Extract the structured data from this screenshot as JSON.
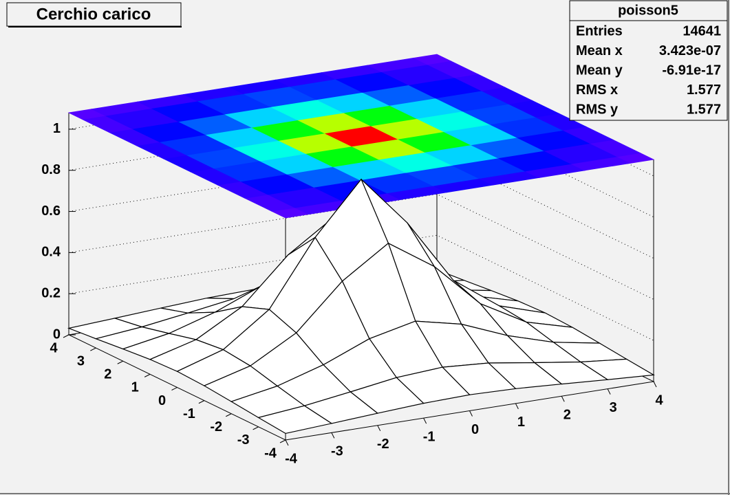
{
  "chart_data": {
    "type": "surface",
    "title": "Cerchio carico",
    "x": [
      -4,
      -3,
      -2,
      -1,
      0,
      1,
      2,
      3,
      4
    ],
    "y": [
      -4,
      -3,
      -2,
      -1,
      0,
      1,
      2,
      3,
      4
    ],
    "z": [
      [
        0.032,
        0.045,
        0.059,
        0.072,
        0.078,
        0.072,
        0.059,
        0.045,
        0.032
      ],
      [
        0.045,
        0.067,
        0.099,
        0.133,
        0.148,
        0.133,
        0.099,
        0.067,
        0.045
      ],
      [
        0.059,
        0.099,
        0.167,
        0.258,
        0.308,
        0.258,
        0.167,
        0.099,
        0.059
      ],
      [
        0.072,
        0.133,
        0.258,
        0.474,
        0.623,
        0.474,
        0.258,
        0.133,
        0.072
      ],
      [
        0.078,
        0.148,
        0.308,
        0.623,
        0.87,
        0.623,
        0.308,
        0.148,
        0.078
      ],
      [
        0.072,
        0.133,
        0.258,
        0.474,
        0.623,
        0.474,
        0.258,
        0.133,
        0.072
      ],
      [
        0.059,
        0.099,
        0.167,
        0.258,
        0.308,
        0.258,
        0.167,
        0.099,
        0.059
      ],
      [
        0.045,
        0.067,
        0.099,
        0.133,
        0.148,
        0.133,
        0.099,
        0.067,
        0.045
      ],
      [
        0.032,
        0.045,
        0.059,
        0.072,
        0.078,
        0.072,
        0.059,
        0.045,
        0.032
      ]
    ],
    "xlim": [
      -4,
      4
    ],
    "ylim": [
      -4,
      4
    ],
    "zlim": [
      0,
      1.08
    ],
    "xticks": [
      -4,
      -3,
      -2,
      -1,
      0,
      1,
      2,
      3,
      4
    ],
    "yticks": [
      -4,
      -3,
      -2,
      -1,
      0,
      1,
      2,
      3,
      4
    ],
    "zticks": [
      0,
      0.2,
      0.4,
      0.6,
      0.8,
      1
    ],
    "grid": true,
    "stats": {
      "name": "poisson5",
      "rows": [
        {
          "label": "Entries",
          "value": 14641
        },
        {
          "label": "Mean x",
          "value": {
            "value": 3.423e-07,
            "label": "3.423e-07"
          }
        },
        {
          "label": "Mean y",
          "value": {
            "value": -6.91e-17,
            "label": "-6.91e-17"
          }
        },
        {
          "label": "RMS x",
          "value": 1.577
        },
        {
          "label": "RMS y",
          "value": 1.577
        }
      ]
    }
  }
}
